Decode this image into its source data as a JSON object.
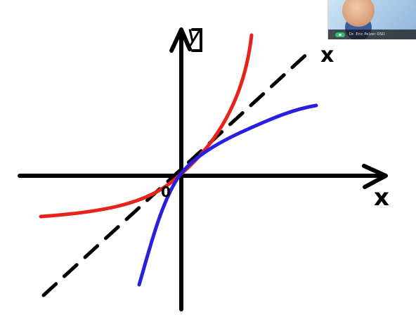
{
  "labels": {
    "y_axis": "y",
    "x_axis": "x",
    "origin": "0",
    "diagonal": "x"
  },
  "webcam": {
    "presenter_name": "Dr. Eric Pelzer OSD"
  },
  "colors": {
    "ink": "#000000",
    "red_curve": "#e8231b",
    "blue_curve": "#2620e0",
    "mic_active": "#2dbf6c"
  }
}
